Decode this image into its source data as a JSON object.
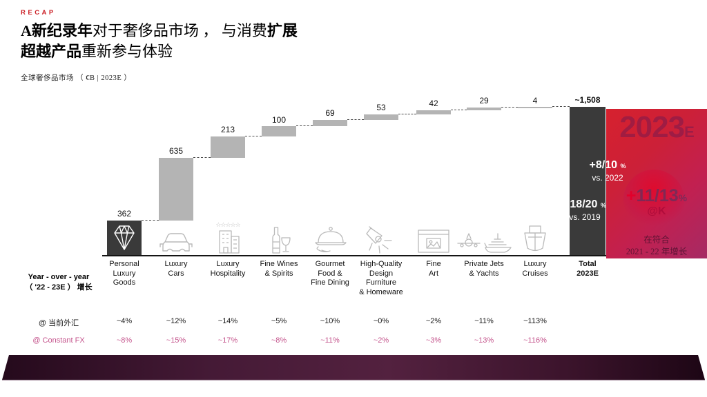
{
  "header": {
    "eyebrow": "RECAP",
    "title_l1_b1": "A新纪录年",
    "title_l1_r1": "对于奢侈品市场 ， 与消费",
    "title_l1_b2": "扩展",
    "title_l2_b1": "超越产品",
    "title_l2_r1": "重新参与体验",
    "subtitle": "全球奢侈品市场 （ €B | 2023E ）"
  },
  "chart_data": {
    "type": "bar",
    "subtype": "waterfall",
    "title": "全球奢侈品市场 （€B | 2023E）",
    "unit": "€B",
    "ylim": [
      0,
      1508
    ],
    "grid": false,
    "categories": [
      "Personal Luxury Goods",
      "Luxury Cars",
      "Luxury Hospitality",
      "Fine Wines & Spirits",
      "Gourmet Food & Fine Dining",
      "High-Quality Design Furniture & Homeware",
      "Fine Art",
      "Private Jets & Yachts",
      "Luxury Cruises"
    ],
    "category_label_lines": [
      [
        "Personal",
        "Luxury",
        "Goods"
      ],
      [
        "Luxury",
        "Cars"
      ],
      [
        "Luxury",
        "Hospitality"
      ],
      [
        "Fine Wines",
        "& Spirits"
      ],
      [
        "Gourmet",
        "Food &",
        "Fine Dining"
      ],
      [
        "High-Quality",
        "Design",
        "Furniture",
        "& Homeware"
      ],
      [
        "Fine",
        "Art"
      ],
      [
        "Private Jets",
        "& Yachts"
      ],
      [
        "Luxury",
        "Cruises"
      ]
    ],
    "values": [
      362,
      635,
      213,
      100,
      69,
      53,
      42,
      29,
      4
    ],
    "value_labels": [
      "362",
      "635",
      "213",
      "100",
      "69",
      "53",
      "42",
      "29",
      "4"
    ],
    "total": {
      "value": 1508,
      "value_label": "~1,508",
      "label_lines": [
        "Total",
        "2023E"
      ]
    },
    "icons": [
      "diamond-icon",
      "car-icon",
      "hotel-stars-icon",
      "wine-bottle-glass-icon",
      "cloche-icon",
      "spotlight-icon",
      "picture-frame-icon",
      "jet-and-yacht-icon",
      "cruise-ship-icon"
    ],
    "colors": {
      "bar": "#b4b4b4",
      "first_bar": "#3a3a3a",
      "total_bar": "#3a3a3a"
    }
  },
  "total_annotations": {
    "g1_value": "+8/10",
    "g1_pct": "%",
    "g1_vs": "vs. 2022",
    "g2_value": "+18/20",
    "g2_pct": "%",
    "g2_vs": "vs. 2019"
  },
  "highlight_panel": {
    "year": "2023",
    "year_suffix": "E",
    "bubble_plus": "+",
    "bubble_value": "11/13",
    "bubble_pct": "%",
    "bubble_tag": "@K",
    "caption_l1": "在符合",
    "caption_l2": "2021 - 22 年增长"
  },
  "growth_table": {
    "header_l1": "Year - over - year",
    "header_l2": "（ '22 - 23E ） 增长",
    "rows": [
      {
        "label": "@ 当前外汇",
        "values": [
          "~4%",
          "~12%",
          "~14%",
          "~5%",
          "~10%",
          "~0%",
          "~2%",
          "~11%",
          "~113%"
        ]
      },
      {
        "label": "@ Constant FX",
        "values": [
          "~8%",
          "~15%",
          "~17%",
          "~8%",
          "~11%",
          "~2%",
          "~3%",
          "~13%",
          "~116%"
        ]
      }
    ],
    "row_colors": [
      "#1a1a1a",
      "#c4548c"
    ]
  }
}
